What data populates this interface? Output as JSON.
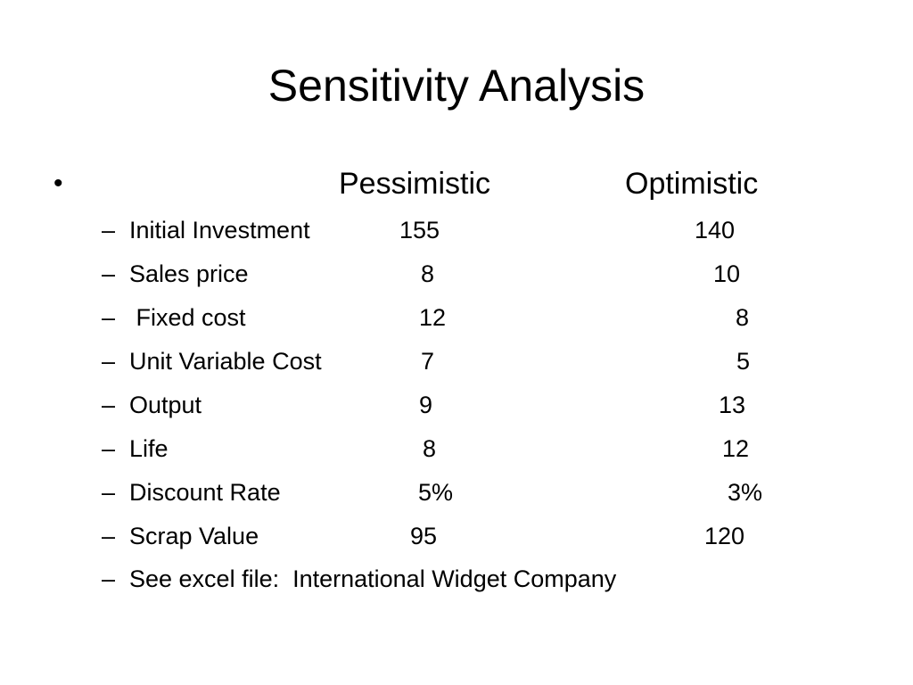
{
  "slide": {
    "title": "Sensitivity Analysis",
    "bullet": "•",
    "columns": {
      "pessimistic": "Pessimistic",
      "optimistic": "Optimistic"
    },
    "dash": "–",
    "rows": [
      {
        "label": "Initial Investment",
        "pessimistic": "155",
        "optimistic": "140"
      },
      {
        "label": "Sales price",
        "pessimistic": "8",
        "optimistic": "10"
      },
      {
        "label": " Fixed cost",
        "pessimistic": "12",
        "optimistic": "8"
      },
      {
        "label": "Unit Variable Cost",
        "pessimistic": "7",
        "optimistic": "5"
      },
      {
        "label": "Output",
        "pessimistic": "9",
        "optimistic": "13"
      },
      {
        "label": "Life",
        "pessimistic": "8",
        "optimistic": "12"
      },
      {
        "label": "Discount Rate",
        "pessimistic": "5%",
        "optimistic": "3%"
      },
      {
        "label": "Scrap Value",
        "pessimistic": "95",
        "optimistic": "120"
      }
    ],
    "note": "See excel file:  International Widget Company"
  }
}
